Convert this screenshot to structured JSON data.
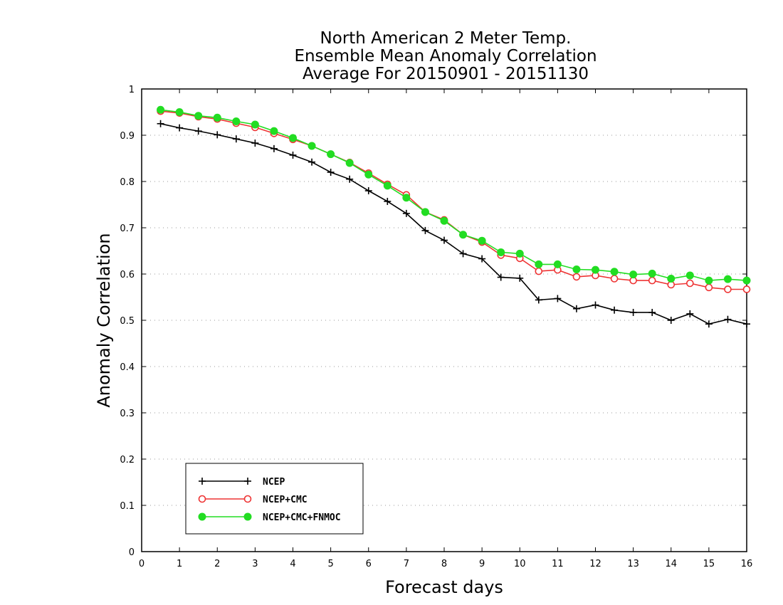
{
  "chart_data": {
    "type": "line",
    "title": [
      "North American 2 Meter Temp.",
      "Ensemble Mean Anomaly Correlation",
      "Average For 20150901 - 20151130"
    ],
    "xlabel": "Forecast days",
    "ylabel": "Anomaly Correlation",
    "xlim": [
      0,
      16
    ],
    "ylim": [
      0,
      1
    ],
    "xticks": [
      0,
      1,
      2,
      3,
      4,
      5,
      6,
      7,
      8,
      9,
      10,
      11,
      12,
      13,
      14,
      15,
      16
    ],
    "yticks": [
      0,
      0.1,
      0.2,
      0.3,
      0.4,
      0.5,
      0.6,
      0.7,
      0.8,
      0.9,
      1
    ],
    "ytick_labels": [
      "0",
      "0.1",
      "0.2",
      "0.3",
      "0.4",
      "0.5",
      "0.6",
      "0.7",
      "0.8",
      "0.9",
      "1"
    ],
    "grid": "horizontal dotted",
    "legend_position": "bottom-left",
    "x": [
      0.5,
      1,
      1.5,
      2,
      2.5,
      3,
      3.5,
      4,
      4.5,
      5,
      5.5,
      6,
      6.5,
      7,
      7.5,
      8,
      8.5,
      9,
      9.5,
      10,
      10.5,
      11,
      11.5,
      12,
      12.5,
      13,
      13.5,
      14,
      14.5,
      15,
      15.5,
      16
    ],
    "series": [
      {
        "name": "NCEP",
        "color": "#000000",
        "marker": "plus",
        "values": [
          0.925,
          0.916,
          0.909,
          0.901,
          0.892,
          0.883,
          0.871,
          0.857,
          0.842,
          0.82,
          0.805,
          0.78,
          0.757,
          0.731,
          0.694,
          0.673,
          0.644,
          0.633,
          0.593,
          0.591,
          0.544,
          0.547,
          0.525,
          0.533,
          0.522,
          0.517,
          0.517,
          0.5,
          0.514,
          0.492,
          0.502,
          0.492
        ]
      },
      {
        "name": "NCEP+CMC",
        "color": "#ee3333",
        "marker": "open-circle",
        "values": [
          0.952,
          0.948,
          0.94,
          0.935,
          0.926,
          0.917,
          0.904,
          0.891,
          0.877,
          0.859,
          0.841,
          0.818,
          0.794,
          0.771,
          0.734,
          0.717,
          0.685,
          0.669,
          0.641,
          0.634,
          0.606,
          0.609,
          0.594,
          0.597,
          0.59,
          0.586,
          0.586,
          0.577,
          0.58,
          0.571,
          0.567,
          0.567
        ]
      },
      {
        "name": "NCEP+CMC+FNMOC",
        "color": "#22dd22",
        "marker": "filled-circle",
        "values": [
          0.955,
          0.95,
          0.942,
          0.938,
          0.93,
          0.923,
          0.909,
          0.894,
          0.877,
          0.859,
          0.84,
          0.815,
          0.791,
          0.765,
          0.734,
          0.715,
          0.685,
          0.672,
          0.647,
          0.644,
          0.621,
          0.621,
          0.61,
          0.609,
          0.605,
          0.599,
          0.601,
          0.59,
          0.597,
          0.586,
          0.589,
          0.586
        ]
      }
    ]
  }
}
